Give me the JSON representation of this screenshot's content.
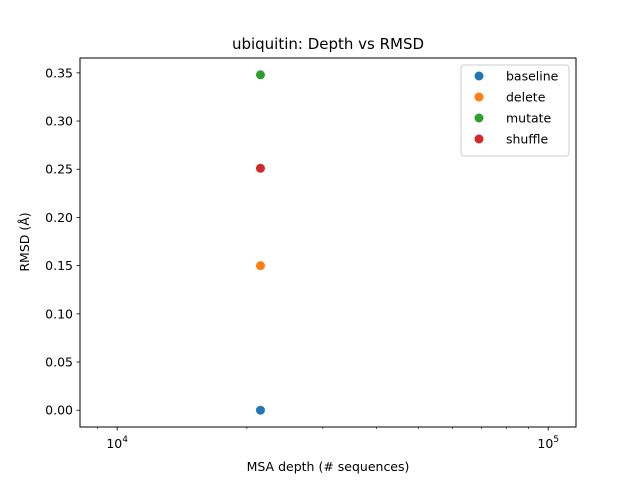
{
  "chart_data": {
    "type": "scatter",
    "title": "ubiquitin: Depth vs RMSD",
    "xlabel": "MSA depth (# sequences)",
    "ylabel": "RMSD (Å)",
    "xscale": "log",
    "xlim": [
      8200,
      116000
    ],
    "ylim": [
      -0.0174,
      0.3654
    ],
    "x_ticks": [
      {
        "value": 10000,
        "base": "10",
        "exp": "4"
      },
      {
        "value": 100000,
        "base": "10",
        "exp": "5"
      }
    ],
    "y_ticks": [
      {
        "value": 0.0,
        "label": "0.00"
      },
      {
        "value": 0.05,
        "label": "0.05"
      },
      {
        "value": 0.1,
        "label": "0.10"
      },
      {
        "value": 0.15,
        "label": "0.15"
      },
      {
        "value": 0.2,
        "label": "0.20"
      },
      {
        "value": 0.25,
        "label": "0.25"
      },
      {
        "value": 0.3,
        "label": "0.30"
      },
      {
        "value": 0.35,
        "label": "0.35"
      }
    ],
    "grid": false,
    "legend_position": "top-right",
    "series": [
      {
        "name": "baseline",
        "color": "#1f77b4",
        "points": [
          {
            "x": 21500,
            "y": 0.0
          }
        ]
      },
      {
        "name": "delete",
        "color": "#ff7f0e",
        "points": [
          {
            "x": 21500,
            "y": 0.15
          }
        ]
      },
      {
        "name": "mutate",
        "color": "#2ca02c",
        "points": [
          {
            "x": 21500,
            "y": 0.348
          }
        ]
      },
      {
        "name": "shuffle",
        "color": "#d62728",
        "points": [
          {
            "x": 21500,
            "y": 0.251
          }
        ]
      }
    ]
  }
}
